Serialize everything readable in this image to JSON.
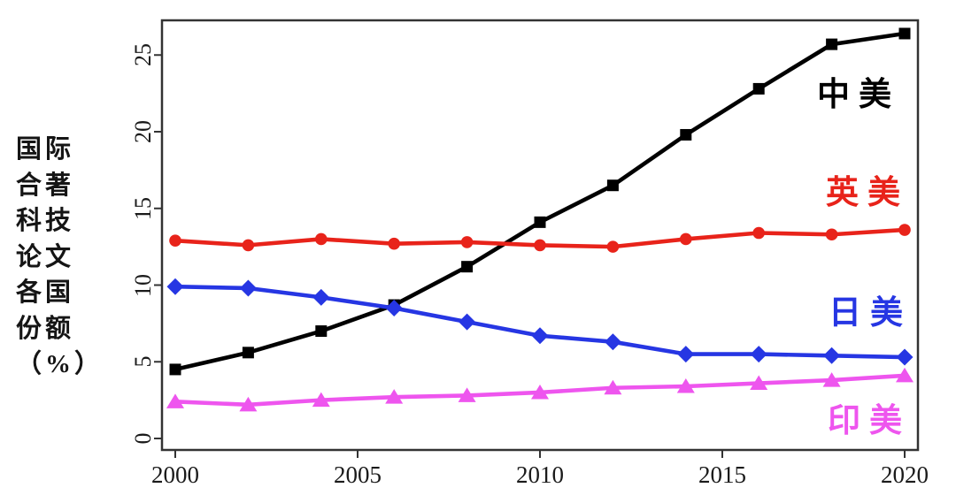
{
  "chart_data": {
    "type": "line",
    "title": "",
    "xlabel": "",
    "ylabel": "国际合著科技论文各国份额（%）",
    "ylabel_lines": [
      "国际",
      "合著",
      "科技",
      "论文",
      "各国",
      "份额",
      "（%）"
    ],
    "x": [
      2000,
      2002,
      2004,
      2006,
      2008,
      2010,
      2012,
      2014,
      2016,
      2018,
      2020
    ],
    "x_ticks": [
      2000,
      2005,
      2010,
      2015,
      2020
    ],
    "y_ticks": [
      0,
      5,
      10,
      15,
      20,
      25
    ],
    "xlim": [
      2000,
      2020
    ],
    "ylim": [
      0,
      27
    ],
    "grid": false,
    "legend_position": "inline-right",
    "frame_color": "#333333",
    "series": [
      {
        "name": "中美",
        "color": "#000000",
        "marker": "square",
        "values": [
          4.5,
          5.6,
          7.0,
          8.7,
          11.2,
          14.1,
          16.5,
          19.8,
          22.8,
          25.7,
          26.4
        ]
      },
      {
        "name": "英美",
        "color": "#e8231a",
        "marker": "circle",
        "values": [
          12.9,
          12.6,
          13.0,
          12.7,
          12.8,
          12.6,
          12.5,
          13.0,
          13.4,
          13.3,
          13.6
        ]
      },
      {
        "name": "日美",
        "color": "#2636e3",
        "marker": "diamond",
        "values": [
          9.9,
          9.8,
          9.2,
          8.5,
          7.6,
          6.7,
          6.3,
          5.5,
          5.5,
          5.4,
          5.3
        ]
      },
      {
        "name": "印美",
        "color": "#ee55ee",
        "marker": "triangle-up",
        "values": [
          2.4,
          2.2,
          2.5,
          2.7,
          2.8,
          3.0,
          3.3,
          3.4,
          3.6,
          3.8,
          4.1
        ]
      }
    ]
  }
}
